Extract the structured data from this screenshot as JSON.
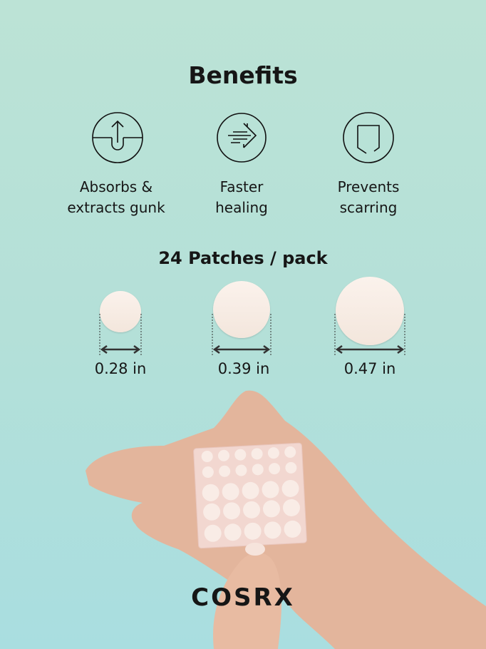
{
  "title": "Benefits",
  "benefits": [
    {
      "icon": "absorb-arrow-icon",
      "line1": "Absorbs &",
      "line2": "extracts gunk"
    },
    {
      "icon": "fast-arrow-icon",
      "line1": "Faster",
      "line2": "healing"
    },
    {
      "icon": "shield-icon",
      "line1": "Prevents",
      "line2": "scarring"
    }
  ],
  "pack_label": "24 Patches / pack",
  "sizes": [
    "0.28 in",
    "0.39 in",
    "0.47 in"
  ],
  "brand": "COSRX",
  "colors": {
    "background_top": "#bce3d6",
    "background_bottom": "#a9dee0",
    "patch": "#f8eee6",
    "text": "#161616"
  }
}
